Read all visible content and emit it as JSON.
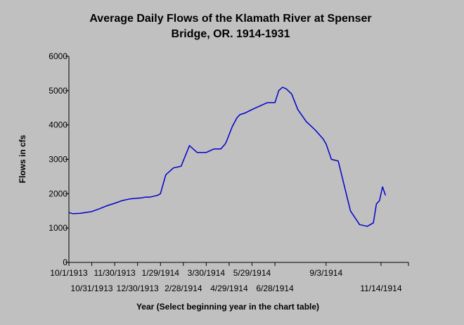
{
  "chart_data": {
    "type": "line",
    "title_lines": [
      "Average Daily Flows of the Klamath River at Spenser",
      "Bridge, OR. 1914-1931"
    ],
    "xlabel": "Year (Select beginning year in the chart table)",
    "ylabel": "Flows in cfs",
    "ylim": [
      0,
      6000
    ],
    "yticks": [
      0,
      1000,
      2000,
      3000,
      4000,
      5000,
      6000
    ],
    "xlim": [
      "1913-10-01",
      "1914-12-20"
    ],
    "xticks_upper": [
      "10/1/1913",
      "11/30/1913",
      "1/29/1914",
      "3/30/1914",
      "5/29/1914",
      "9/3/1914"
    ],
    "xticks_lower": [
      "10/31/1913",
      "12/30/1913",
      "2/28/1914",
      "4/29/1914",
      "6/28/1914",
      "11/14/1914"
    ],
    "grid": false,
    "line_color": "#0000cc",
    "series": [
      {
        "x": [
          "1913-10-01",
          "1913-10-06",
          "1913-10-16",
          "1913-10-31",
          "1913-11-10",
          "1913-11-20",
          "1913-11-30",
          "1913-12-10",
          "1913-12-20",
          "1913-12-30",
          "1914-01-05",
          "1914-01-09",
          "1914-01-15",
          "1914-01-25",
          "1914-01-29",
          "1914-02-05",
          "1914-02-15",
          "1914-02-25",
          "1914-03-08",
          "1914-03-18",
          "1914-03-30",
          "1914-04-09",
          "1914-04-18",
          "1914-04-24",
          "1914-04-26",
          "1914-05-03",
          "1914-05-09",
          "1914-05-13",
          "1914-05-20",
          "1914-05-29",
          "1914-06-08",
          "1914-06-18",
          "1914-06-28",
          "1914-07-03",
          "1914-07-08",
          "1914-07-13",
          "1914-07-20",
          "1914-07-28",
          "1914-08-08",
          "1914-08-20",
          "1914-08-30",
          "1914-09-03",
          "1914-09-10",
          "1914-09-19",
          "1914-09-25",
          "1914-10-05",
          "1914-10-17",
          "1914-10-27",
          "1914-11-04",
          "1914-11-08",
          "1914-11-12",
          "1914-11-16",
          "1914-11-20"
        ],
        "y": [
          1450,
          1420,
          1430,
          1480,
          1560,
          1650,
          1720,
          1800,
          1850,
          1870,
          1880,
          1900,
          1900,
          1950,
          2000,
          2550,
          2750,
          2800,
          3400,
          3200,
          3200,
          3300,
          3300,
          3450,
          3550,
          3950,
          4200,
          4300,
          4350,
          4450,
          4550,
          4650,
          4650,
          5000,
          5100,
          5050,
          4900,
          4450,
          4100,
          3850,
          3600,
          3450,
          3000,
          2950,
          2400,
          1500,
          1100,
          1050,
          1150,
          1700,
          1800,
          2200,
          1950
        ]
      }
    ]
  }
}
